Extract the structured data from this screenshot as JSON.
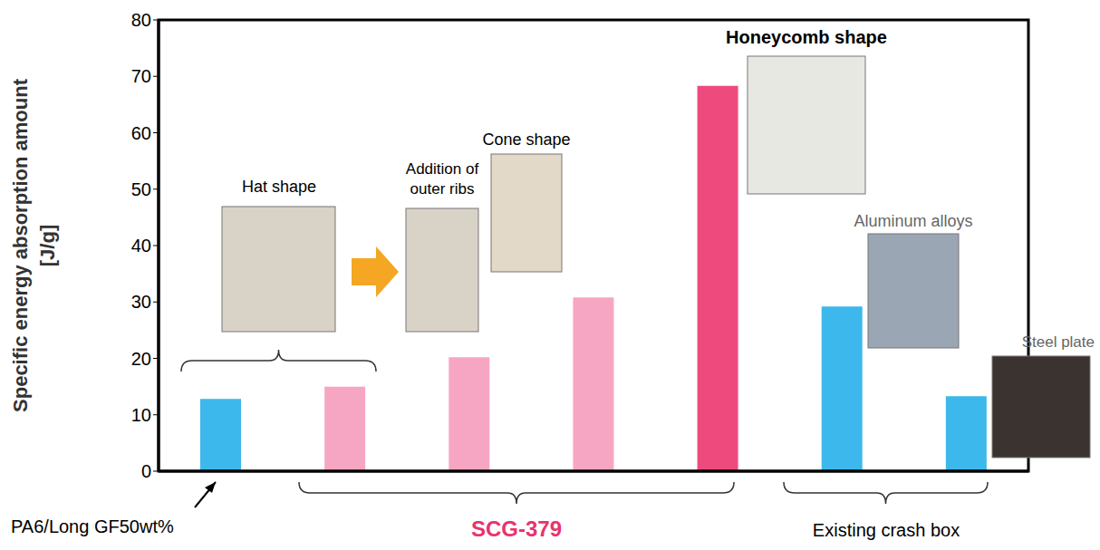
{
  "chart_data": {
    "type": "bar",
    "categories": [
      null,
      null,
      null,
      null,
      null,
      null,
      null
    ],
    "values": [
      12.8,
      15,
      20.2,
      30.8,
      68.3,
      29.2,
      13.3
    ],
    "colors": [
      "#3db8ec",
      "#f6a6c3",
      "#f6a6c3",
      "#f6a6c3",
      "#ee4a7e",
      "#3db8ec",
      "#3db8ec"
    ],
    "ylim": [
      0,
      80
    ],
    "yticks": [
      0,
      10,
      20,
      30,
      40,
      50,
      60,
      70,
      80
    ],
    "y_label": "Specific energy absorption amount [J/g]",
    "annotations": [
      "Hat shape",
      "Addition of outer ribs",
      "Cone shape",
      "Honeycomb shape",
      "Aluminum alloys",
      "Steel plate"
    ],
    "groups": [
      "PA6/Long GF50wt%",
      "SCG-379",
      "Existing crash box"
    ]
  }
}
